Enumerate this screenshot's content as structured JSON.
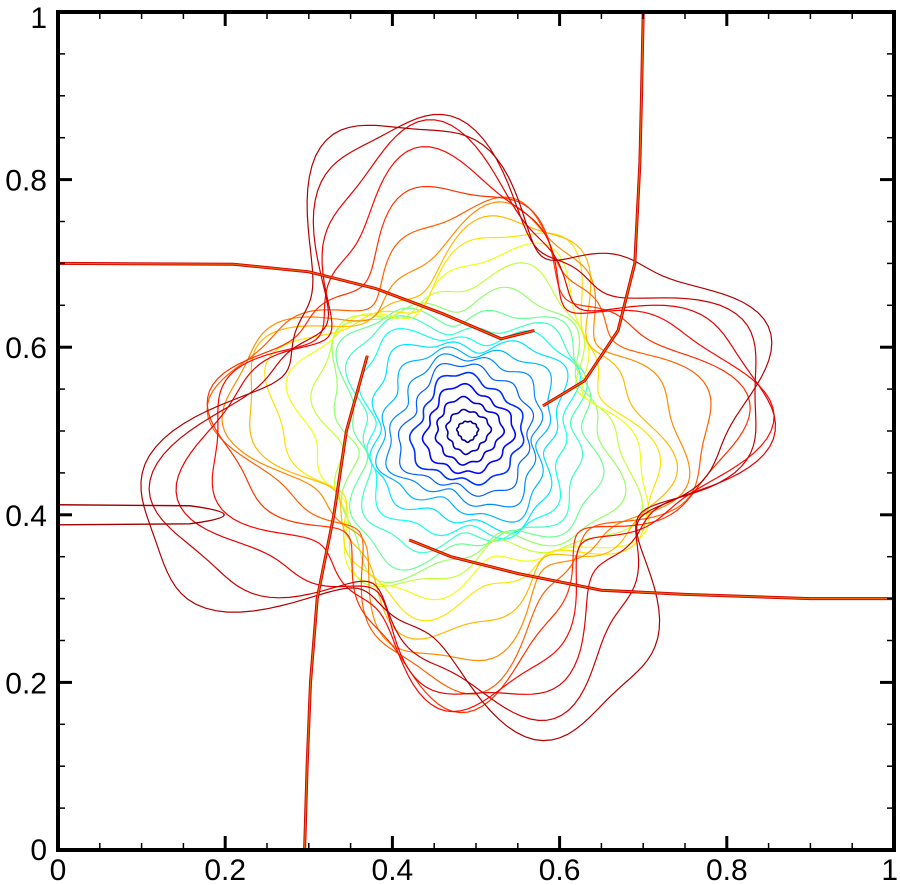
{
  "chart_data": {
    "type": "contour",
    "title": "",
    "xlabel": "",
    "ylabel": "",
    "xlim": [
      0,
      1
    ],
    "ylim": [
      0,
      1
    ],
    "x_ticks": [
      "0",
      "0.2",
      "0.4",
      "0.6",
      "0.8",
      "1"
    ],
    "y_ticks": [
      "0",
      "0.2",
      "0.4",
      "0.6",
      "0.8",
      "1"
    ],
    "x_tick_values": [
      0,
      0.2,
      0.4,
      0.6,
      0.8,
      1
    ],
    "y_tick_values": [
      0,
      0.2,
      0.4,
      0.6,
      0.8,
      1
    ],
    "minor_tick_step": 0.05,
    "grid": false,
    "legend": "none",
    "colormap": [
      "#00008b",
      "#0000ff",
      "#0080ff",
      "#00ffff",
      "#80ff80",
      "#ffff00",
      "#ff8000",
      "#ff0000",
      "#b00000"
    ],
    "vortex_center": [
      0.49,
      0.5
    ],
    "contour_levels": 24,
    "discontinuities": [
      {
        "name": "upper-horizontal",
        "points": [
          [
            0,
            0.7
          ],
          [
            0.21,
            0.699
          ],
          [
            0.3,
            0.69
          ],
          [
            0.38,
            0.67
          ],
          [
            0.46,
            0.64
          ],
          [
            0.53,
            0.61
          ],
          [
            0.57,
            0.62
          ]
        ]
      },
      {
        "name": "vertical-left",
        "points": [
          [
            0.295,
            0
          ],
          [
            0.298,
            0.1
          ],
          [
            0.302,
            0.2
          ],
          [
            0.31,
            0.3
          ],
          [
            0.33,
            0.4
          ],
          [
            0.345,
            0.5
          ],
          [
            0.37,
            0.59
          ]
        ]
      },
      {
        "name": "vertical-right",
        "points": [
          [
            0.7,
            1
          ],
          [
            0.698,
            0.9
          ],
          [
            0.696,
            0.82
          ],
          [
            0.69,
            0.7
          ],
          [
            0.67,
            0.62
          ],
          [
            0.63,
            0.56
          ],
          [
            0.58,
            0.53
          ]
        ]
      },
      {
        "name": "lower-horizontal",
        "points": [
          [
            1,
            0.3
          ],
          [
            0.9,
            0.3
          ],
          [
            0.75,
            0.305
          ],
          [
            0.65,
            0.31
          ],
          [
            0.55,
            0.33
          ],
          [
            0.47,
            0.35
          ],
          [
            0.42,
            0.37
          ]
        ]
      }
    ],
    "jet": {
      "y": 0.4,
      "x_end": 0.21,
      "half_width": 0.012
    }
  }
}
